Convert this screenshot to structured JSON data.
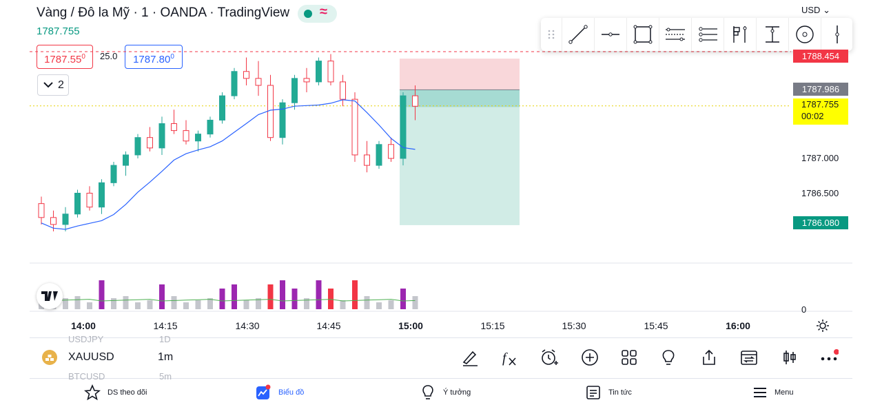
{
  "header": {
    "title": "Vàng / Đô la Mỹ · 1 · OANDA · TradingView",
    "current_price": "1787.755",
    "status_icon": "market-open-dot",
    "currency": "USD",
    "sell_price": "1787.55",
    "sell_sup": "0",
    "buy_price": "1787.80",
    "buy_sup": "0",
    "spread": "25.0",
    "indicators_count": "2"
  },
  "drawing_toolbar": {
    "tools": [
      "drag-handle",
      "trend-line",
      "horizontal-line",
      "rectangle",
      "parallel-channel",
      "pitchfork",
      "long-position",
      "fib-tool",
      "circle",
      "vertical-line"
    ]
  },
  "price_labels": {
    "top_red": "1788.454",
    "grey": "1787.986",
    "current": "1787.755",
    "countdown": "00:02",
    "bottom_green": "1786.080"
  },
  "price_axis": [
    "1787.000",
    "1786.500"
  ],
  "volume_axis": "0",
  "time_axis": [
    {
      "label": "14:00",
      "bold": true
    },
    {
      "label": "14:15",
      "bold": false
    },
    {
      "label": "14:30",
      "bold": false
    },
    {
      "label": "14:45",
      "bold": false
    },
    {
      "label": "15:00",
      "bold": true
    },
    {
      "label": "15:15",
      "bold": false
    },
    {
      "label": "15:30",
      "bold": false
    },
    {
      "label": "15:45",
      "bold": false
    },
    {
      "label": "16:00",
      "bold": true
    }
  ],
  "symbol_bar": {
    "ghost_top_symbol": "USDJPY",
    "ghost_top_interval": "1D",
    "symbol": "XAUUSD",
    "interval": "1m",
    "ghost_bottom_symbol": "BTCUSD",
    "ghost_bottom_interval": "5m",
    "actions": [
      "brush-icon",
      "function-icon",
      "alarm-add-icon",
      "plus-circle-icon",
      "grid-icon",
      "lightbulb-icon",
      "share-icon",
      "calendar-swap-icon",
      "candles-icon",
      "more-icon"
    ]
  },
  "bottom_nav": {
    "watchlist": "DS theo dõi",
    "chart": "Biểu đồ",
    "ideas": "Ý tưởng",
    "news": "Tin tức",
    "menu": "Menu"
  },
  "colors": {
    "up": "#26a69a",
    "up_body": "#22ab94",
    "down": "#f23645",
    "accent": "#2962ff",
    "volume_up": "#9c27b0",
    "volume_grey": "#c4c6cc",
    "ma": "#2962ff",
    "highlight": "#ffff00"
  },
  "chart_data": {
    "type": "candlestick",
    "candles_ohlc_sample": [
      [
        1786.35,
        1786.45,
        1786.05,
        1786.15
      ],
      [
        1786.15,
        1786.25,
        1785.95,
        1786.05
      ],
      [
        1786.05,
        1786.3,
        1785.95,
        1786.2
      ],
      [
        1786.2,
        1786.55,
        1786.15,
        1786.5
      ],
      [
        1786.5,
        1786.6,
        1786.25,
        1786.3
      ],
      [
        1786.3,
        1786.7,
        1786.2,
        1786.65
      ],
      [
        1786.65,
        1786.95,
        1786.6,
        1786.9
      ],
      [
        1786.9,
        1787.1,
        1786.75,
        1787.05
      ],
      [
        1787.05,
        1787.35,
        1787.0,
        1787.3
      ],
      [
        1787.3,
        1787.45,
        1787.1,
        1787.15
      ],
      [
        1787.15,
        1787.6,
        1787.05,
        1787.5
      ],
      [
        1787.5,
        1787.7,
        1787.35,
        1787.4
      ],
      [
        1787.4,
        1787.55,
        1787.2,
        1787.25
      ],
      [
        1787.25,
        1787.4,
        1787.1,
        1787.35
      ],
      [
        1787.35,
        1787.6,
        1787.3,
        1787.55
      ],
      [
        1787.55,
        1787.95,
        1787.5,
        1787.9
      ],
      [
        1787.9,
        1788.3,
        1787.85,
        1788.25
      ],
      [
        1788.25,
        1788.45,
        1788.05,
        1788.15
      ],
      [
        1788.15,
        1788.4,
        1787.9,
        1788.05
      ],
      [
        1788.05,
        1788.2,
        1787.25,
        1787.3
      ],
      [
        1787.3,
        1787.85,
        1787.2,
        1787.8
      ],
      [
        1787.8,
        1788.2,
        1787.7,
        1788.15
      ],
      [
        1788.15,
        1788.3,
        1787.95,
        1788.1
      ],
      [
        1788.1,
        1788.45,
        1788.05,
        1788.4
      ],
      [
        1788.4,
        1788.5,
        1788.05,
        1788.1
      ],
      [
        1788.1,
        1788.2,
        1787.75,
        1787.85
      ],
      [
        1787.85,
        1787.95,
        1786.95,
        1787.05
      ],
      [
        1787.05,
        1787.25,
        1786.8,
        1786.9
      ],
      [
        1786.9,
        1787.25,
        1786.85,
        1787.2
      ],
      [
        1787.2,
        1787.3,
        1786.95,
        1787.0
      ],
      [
        1787.0,
        1787.95,
        1786.9,
        1787.9
      ],
      [
        1787.9,
        1788.05,
        1787.55,
        1787.75
      ]
    ],
    "moving_average_label": "MA",
    "position_box": {
      "entry": 1787.986,
      "stop": 1788.454,
      "target": 1786.08
    },
    "current_price": 1787.755
  }
}
